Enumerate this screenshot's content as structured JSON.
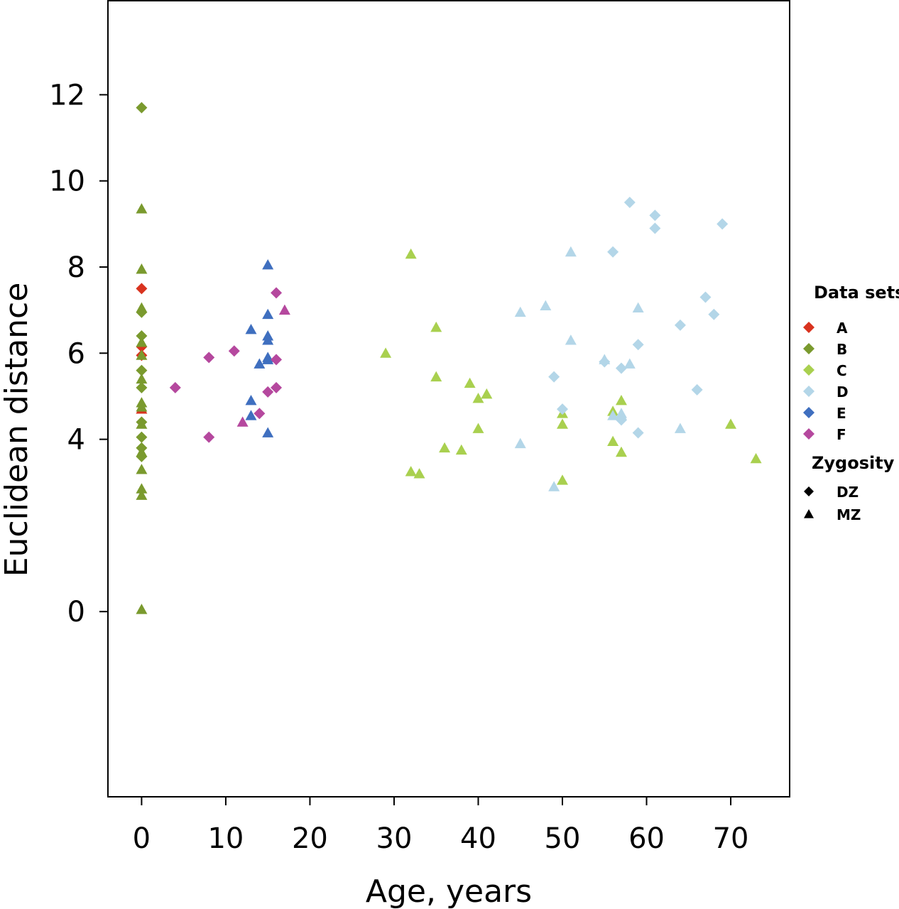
{
  "chart_data": {
    "type": "scatter",
    "title": "",
    "xlabel": "Age, years",
    "ylabel": "Euclidean distance",
    "xlim": [
      -4,
      77
    ],
    "ylim": [
      -4.3,
      14.2
    ],
    "xticks": [
      0,
      10,
      20,
      30,
      40,
      50,
      60,
      70
    ],
    "yticks": [
      0,
      4,
      6,
      8,
      10,
      12
    ],
    "grid": false,
    "legend_position": "right",
    "legend": {
      "datasets_title": "Data sets",
      "zygosity_title": "Zygosity",
      "zygosity": [
        {
          "label": "DZ",
          "marker": "diamond"
        },
        {
          "label": "MZ",
          "marker": "triangle"
        }
      ]
    },
    "series": [
      {
        "name": "A",
        "color": "#d9331f",
        "dz": [
          [
            0,
            7.5
          ],
          [
            0,
            6.15
          ],
          [
            0,
            5.95
          ]
        ],
        "mz": [
          [
            0,
            4.7
          ]
        ]
      },
      {
        "name": "B",
        "color": "#7a9a2e",
        "dz": [
          [
            0,
            11.7
          ],
          [
            0,
            6.95
          ],
          [
            0,
            6.4
          ],
          [
            0,
            5.6
          ],
          [
            0,
            5.2
          ],
          [
            0,
            4.4
          ],
          [
            0,
            4.05
          ],
          [
            0,
            3.8
          ],
          [
            0,
            3.6
          ]
        ],
        "mz": [
          [
            0,
            9.35
          ],
          [
            0,
            7.95
          ],
          [
            0,
            7.05
          ],
          [
            0,
            6.25
          ],
          [
            0,
            5.95
          ],
          [
            0,
            5.4
          ],
          [
            0,
            4.85
          ],
          [
            0,
            4.75
          ],
          [
            0,
            4.35
          ],
          [
            0,
            3.7
          ],
          [
            0,
            3.3
          ],
          [
            0,
            2.85
          ],
          [
            0,
            2.7
          ],
          [
            0,
            0.05
          ]
        ]
      },
      {
        "name": "C",
        "color": "#a9d04f",
        "dz": [],
        "mz": [
          [
            32,
            8.3
          ],
          [
            35,
            6.6
          ],
          [
            29,
            6.0
          ],
          [
            35,
            5.45
          ],
          [
            39,
            5.3
          ],
          [
            41,
            5.05
          ],
          [
            40,
            4.95
          ],
          [
            57,
            4.9
          ],
          [
            56,
            4.65
          ],
          [
            50,
            4.6
          ],
          [
            50,
            4.35
          ],
          [
            40,
            4.25
          ],
          [
            70,
            4.35
          ],
          [
            56,
            3.95
          ],
          [
            36,
            3.8
          ],
          [
            38,
            3.75
          ],
          [
            57,
            3.7
          ],
          [
            73,
            3.55
          ],
          [
            32,
            3.25
          ],
          [
            33,
            3.2
          ],
          [
            50,
            3.05
          ]
        ]
      },
      {
        "name": "D",
        "color": "#b3d6e8",
        "dz": [
          [
            58,
            9.5
          ],
          [
            61,
            9.2
          ],
          [
            69,
            9.0
          ],
          [
            61,
            8.9
          ],
          [
            56,
            8.35
          ],
          [
            67,
            7.3
          ],
          [
            68,
            6.9
          ],
          [
            64,
            6.65
          ],
          [
            59,
            6.2
          ],
          [
            55,
            5.8
          ],
          [
            57,
            5.65
          ],
          [
            49,
            5.45
          ],
          [
            66,
            5.15
          ],
          [
            50,
            4.7
          ],
          [
            57,
            4.45
          ],
          [
            59,
            4.15
          ]
        ],
        "mz": [
          [
            51,
            8.35
          ],
          [
            48,
            7.1
          ],
          [
            45,
            6.95
          ],
          [
            59,
            7.05
          ],
          [
            51,
            6.3
          ],
          [
            55,
            5.85
          ],
          [
            58,
            5.75
          ],
          [
            57,
            4.6
          ],
          [
            56,
            4.55
          ],
          [
            57,
            4.55
          ],
          [
            64,
            4.25
          ],
          [
            45,
            3.9
          ],
          [
            49,
            2.9
          ]
        ]
      },
      {
        "name": "E",
        "color": "#3f6fbf",
        "dz": [],
        "mz": [
          [
            15,
            8.05
          ],
          [
            15,
            6.9
          ],
          [
            13,
            6.55
          ],
          [
            15,
            6.4
          ],
          [
            15,
            6.3
          ],
          [
            15,
            5.9
          ],
          [
            15,
            5.85
          ],
          [
            14,
            5.75
          ],
          [
            13,
            4.9
          ],
          [
            13,
            4.55
          ],
          [
            15,
            4.15
          ]
        ]
      },
      {
        "name": "F",
        "color": "#b5489e",
        "dz": [
          [
            16,
            7.4
          ],
          [
            11,
            6.05
          ],
          [
            8,
            5.9
          ],
          [
            16,
            5.85
          ],
          [
            4,
            5.2
          ],
          [
            16,
            5.2
          ],
          [
            15,
            5.1
          ],
          [
            14,
            4.6
          ],
          [
            8,
            4.05
          ]
        ],
        "mz": [
          [
            17,
            7.0
          ],
          [
            12,
            4.4
          ]
        ]
      }
    ]
  }
}
